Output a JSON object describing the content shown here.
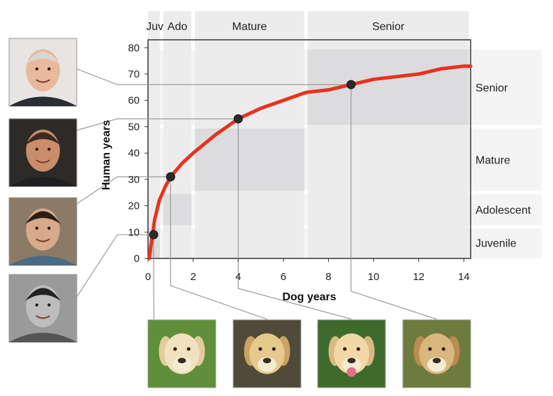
{
  "chart_data": {
    "type": "line",
    "xlabel": "Dog years",
    "ylabel": "Human years",
    "xlim": [
      0,
      14.3
    ],
    "ylim": [
      0,
      83
    ],
    "xticks": [
      0,
      2,
      4,
      6,
      8,
      10,
      12,
      14
    ],
    "yticks": [
      0,
      10,
      20,
      30,
      40,
      50,
      60,
      70,
      80
    ],
    "grid": false,
    "series": [
      {
        "name": "",
        "color": "#e8321e",
        "x": [
          0.05,
          0.1,
          0.2,
          0.3,
          0.5,
          0.75,
          1,
          1.5,
          2,
          3,
          4,
          5,
          6,
          7,
          8,
          9,
          10,
          11,
          12,
          13,
          14,
          14.3
        ],
        "y": [
          0,
          3,
          9,
          15,
          22,
          27,
          31,
          36,
          40,
          47,
          53,
          57,
          60,
          63,
          64,
          66,
          68,
          69,
          70,
          72,
          73,
          73
        ]
      }
    ],
    "highlight_points": [
      {
        "x": 0.25,
        "y": 9
      },
      {
        "x": 1,
        "y": 31
      },
      {
        "x": 4,
        "y": 53
      },
      {
        "x": 9,
        "y": 66
      }
    ],
    "stages_dog": [
      {
        "label": "Juv",
        "x_range": [
          0,
          0.6
        ]
      },
      {
        "label": "Ado",
        "x_range": [
          0.6,
          2
        ]
      },
      {
        "label": "Mature",
        "x_range": [
          2,
          7
        ]
      },
      {
        "label": "Senior",
        "x_range": [
          7,
          14.3
        ]
      }
    ],
    "stages_human": [
      {
        "label": "Juvenile",
        "y_range": [
          0,
          12
        ]
      },
      {
        "label": "Adolescent",
        "y_range": [
          12,
          25
        ]
      },
      {
        "label": "Mature",
        "y_range": [
          25,
          50
        ]
      },
      {
        "label": "Senior",
        "y_range": [
          50,
          80
        ]
      }
    ]
  },
  "photos": {
    "humans": [
      {
        "name": "human-senior-photo",
        "stage": "Senior"
      },
      {
        "name": "human-mature-photo",
        "stage": "Mature"
      },
      {
        "name": "human-adolescent-photo",
        "stage": "Adolescent"
      },
      {
        "name": "human-juvenile-photo",
        "stage": "Juvenile"
      }
    ],
    "dogs": [
      {
        "name": "dog-juvenile-photo",
        "stage": "Juv"
      },
      {
        "name": "dog-adolescent-photo",
        "stage": "Ado"
      },
      {
        "name": "dog-mature-photo",
        "stage": "Mature"
      },
      {
        "name": "dog-senior-photo",
        "stage": "Senior"
      }
    ]
  },
  "colors": {
    "curve": "#e8321e",
    "band_light": "#ececec",
    "band_dark": "#dcdcde",
    "point": "#2b2b2b"
  }
}
